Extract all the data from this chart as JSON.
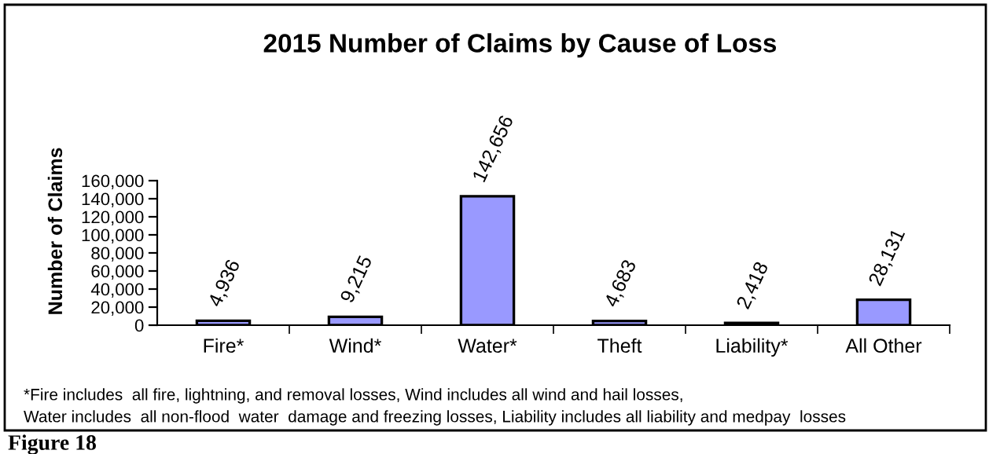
{
  "chart_data": {
    "type": "bar",
    "title": "2015 Number of Claims by Cause of Loss",
    "ylabel": "Number of Claims",
    "categories": [
      "Fire*",
      "Wind*",
      "Water*",
      "Theft",
      "Liability*",
      "All Other"
    ],
    "values": [
      4936,
      9215,
      142656,
      4683,
      2418,
      28131
    ],
    "color": "#9999ff",
    "ylim": [
      0,
      160000
    ],
    "yticks": [
      {
        "value": 0,
        "label": "0"
      },
      {
        "value": 20000,
        "label": "20,000"
      },
      {
        "value": 40000,
        "label": "40,000"
      },
      {
        "value": 60000,
        "label": "60,000"
      },
      {
        "value": 80000,
        "label": "80,000"
      },
      {
        "value": 100000,
        "label": "100,000"
      },
      {
        "value": 120000,
        "label": "120,000"
      },
      {
        "value": 140000,
        "label": "140,000"
      },
      {
        "value": 160000,
        "label": "160,000"
      }
    ],
    "value_labels": [
      "4,936",
      "9,215",
      "142,656",
      "4,683",
      "2,418",
      "28,131"
    ],
    "grid": false,
    "legend": false,
    "annotations": [
      "*Fire includes  all fire, lightning, and removal losses, Wind includes all wind and hail losses,",
      "Water includes  all non-flood  water  damage and freezing losses, Liability includes all liability and medpay  losses",
      "Figure 18"
    ]
  }
}
